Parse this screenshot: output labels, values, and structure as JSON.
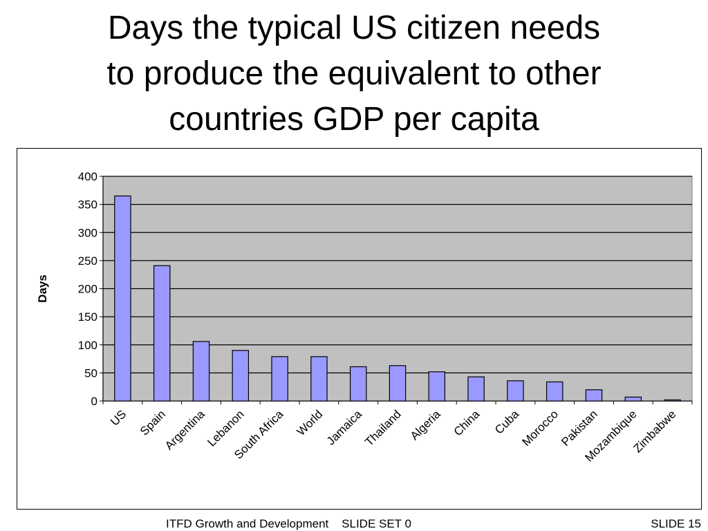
{
  "slide": {
    "title_lines": [
      "Days the typical US citizen needs",
      "to produce the equivalent to other",
      "countries GDP per capita"
    ],
    "footer_left": "ITFD Growth and Development    SLIDE SET 0",
    "footer_right": "SLIDE 15"
  },
  "colors": {
    "bar_fill": "#9999ff",
    "plot_background": "#c0c0c0",
    "gridline": "#000000"
  },
  "chart_data": {
    "type": "bar",
    "title": "",
    "xlabel": "",
    "ylabel": "Days",
    "ylim": [
      0,
      400
    ],
    "yticks": [
      0,
      50,
      100,
      150,
      200,
      250,
      300,
      350,
      400
    ],
    "grid": true,
    "legend": "none",
    "categories": [
      "US",
      "Spain",
      "Argentina",
      "Lebanon",
      "South Africa",
      "World",
      "Jamaica",
      "Thailand",
      "Algeria",
      "China",
      "Cuba",
      "Morocco",
      "Pakistan",
      "Mozambique",
      "Zimbabwe"
    ],
    "values": [
      365,
      241,
      106,
      90,
      79,
      79,
      61,
      63,
      52,
      43,
      36,
      34,
      20,
      7,
      2
    ]
  }
}
